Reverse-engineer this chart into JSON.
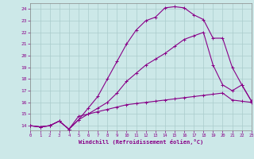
{
  "xlabel": "Windchill (Refroidissement éolien,°C)",
  "background_color": "#cce8e8",
  "line_color": "#880088",
  "grid_color": "#aacccc",
  "xlim": [
    0,
    23
  ],
  "ylim": [
    13.6,
    24.5
  ],
  "xticks": [
    0,
    1,
    2,
    3,
    4,
    5,
    6,
    7,
    8,
    9,
    10,
    11,
    12,
    13,
    14,
    15,
    16,
    17,
    18,
    19,
    20,
    21,
    22,
    23
  ],
  "yticks": [
    14,
    15,
    16,
    17,
    18,
    19,
    20,
    21,
    22,
    23,
    24
  ],
  "curve1_x": [
    0,
    1,
    2,
    3,
    4,
    5,
    6,
    7,
    8,
    9,
    10,
    11,
    12,
    13,
    14,
    15,
    16,
    17,
    18,
    19,
    20,
    21,
    22,
    23
  ],
  "curve1_y": [
    14.0,
    13.9,
    14.0,
    14.4,
    13.7,
    14.8,
    15.0,
    15.2,
    15.4,
    15.6,
    15.8,
    15.9,
    16.0,
    16.1,
    16.2,
    16.3,
    16.4,
    16.5,
    16.6,
    16.7,
    16.8,
    16.2,
    16.1,
    16.0
  ],
  "curve2_x": [
    0,
    1,
    2,
    3,
    4,
    5,
    6,
    7,
    8,
    9,
    10,
    11,
    12,
    13,
    14,
    15,
    16,
    17,
    18,
    19,
    20,
    21,
    22,
    23
  ],
  "curve2_y": [
    14.0,
    13.9,
    14.0,
    14.4,
    13.7,
    14.5,
    15.0,
    15.5,
    16.0,
    16.8,
    17.8,
    18.5,
    19.2,
    19.7,
    20.2,
    20.8,
    21.4,
    21.7,
    22.0,
    19.2,
    17.5,
    17.0,
    17.5,
    16.1
  ],
  "curve3_x": [
    0,
    1,
    2,
    3,
    4,
    5,
    6,
    7,
    8,
    9,
    10,
    11,
    12,
    13,
    14,
    15,
    16,
    17,
    18,
    19,
    20,
    21,
    22,
    23
  ],
  "curve3_y": [
    14.0,
    13.9,
    14.0,
    14.4,
    13.7,
    14.5,
    15.5,
    16.5,
    18.0,
    19.5,
    21.0,
    22.2,
    23.0,
    23.3,
    24.1,
    24.2,
    24.1,
    23.5,
    23.1,
    21.5,
    21.5,
    19.0,
    17.5,
    16.1
  ]
}
